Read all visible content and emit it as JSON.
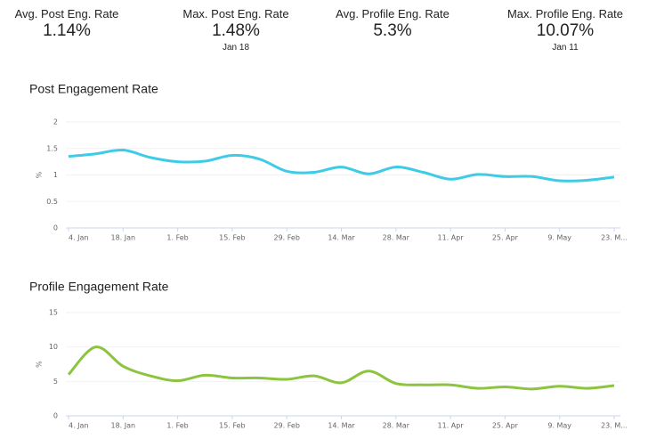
{
  "stats": [
    {
      "label": "Avg. Post Eng. Rate",
      "value": "1.14%"
    },
    {
      "label": "Max. Post Eng. Rate",
      "value": "1.48%",
      "date": "Jan 18"
    },
    {
      "label": "Avg. Profile Eng. Rate",
      "value": "5.3%"
    },
    {
      "label": "Max. Profile Eng. Rate",
      "value": "10.07%",
      "date": "Jan 11"
    }
  ],
  "chart_data": [
    {
      "type": "line",
      "title": "Post Engagement Rate",
      "y_label": "%",
      "categories": [
        "4. Jan",
        null,
        "18. Jan",
        null,
        "1. Feb",
        null,
        "15. Feb",
        null,
        "29. Feb",
        null,
        "14. Mar",
        null,
        "28. Mar",
        null,
        "11. Apr",
        null,
        "25. Apr",
        null,
        "9. May",
        null,
        "23. M..."
      ],
      "series": [
        {
          "name": "Post Engagement Rate",
          "color": "#3ecbe6",
          "values": [
            1.35,
            1.4,
            1.47,
            1.33,
            1.25,
            1.26,
            1.37,
            1.3,
            1.07,
            1.05,
            1.15,
            1.02,
            1.15,
            1.05,
            0.92,
            1.01,
            0.97,
            0.97,
            0.89,
            0.9,
            0.96
          ]
        }
      ],
      "ylim": [
        0,
        2
      ],
      "yticks": [
        0,
        0.5,
        1,
        1.5,
        2
      ],
      "grid": true
    },
    {
      "type": "line",
      "title": "Profile Engagement Rate",
      "y_label": "%",
      "categories": [
        "4. Jan",
        null,
        "18. Jan",
        null,
        "1. Feb",
        null,
        "15. Feb",
        null,
        "29. Feb",
        null,
        "14. Mar",
        null,
        "28. Mar",
        null,
        "11. Apr",
        null,
        "25. Apr",
        null,
        "9. May",
        null,
        "23. M..."
      ],
      "series": [
        {
          "name": "Profile Engagement Rate",
          "color": "#8cc43f",
          "values": [
            6,
            10,
            7.2,
            5.8,
            5.1,
            5.9,
            5.5,
            5.5,
            5.3,
            5.8,
            4.8,
            6.5,
            4.7,
            4.5,
            4.5,
            4.0,
            4.2,
            3.9,
            4.3,
            4.0,
            4.4
          ]
        }
      ],
      "ylim": [
        0,
        15
      ],
      "yticks": [
        0,
        5,
        10,
        15
      ],
      "grid": true
    }
  ]
}
